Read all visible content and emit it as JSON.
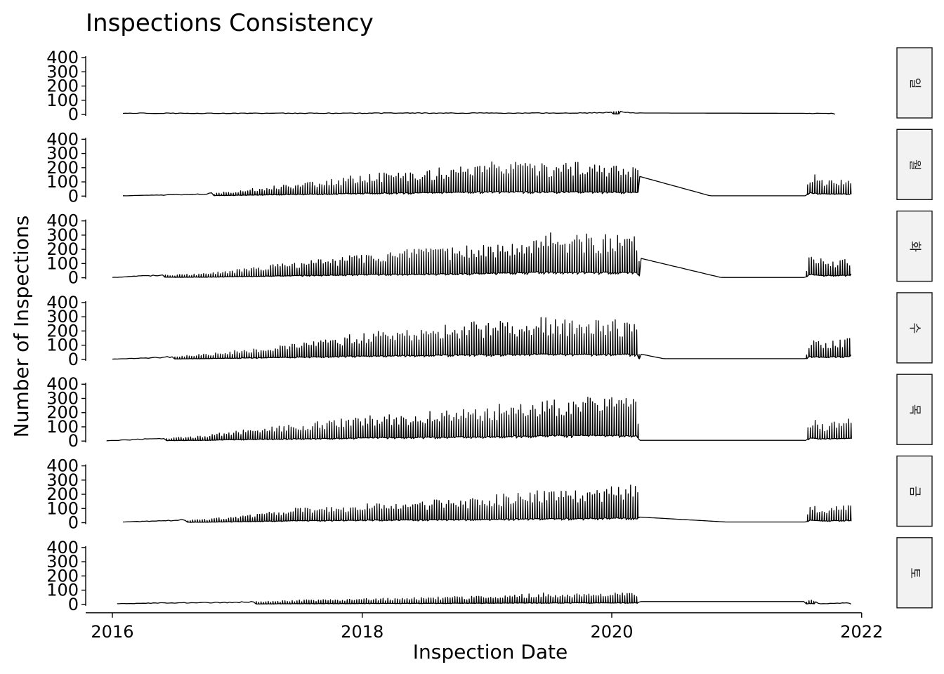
{
  "chart_data": {
    "type": "line",
    "title": "Inspections Consistency",
    "xlabel": "Inspection Date",
    "ylabel": "Number of Inspections",
    "x_ticks": [
      "2016",
      "2018",
      "2020",
      "2022"
    ],
    "xlim": [
      "2015-10-15",
      "2022-01-20"
    ],
    "y_ticks": [
      0,
      100,
      200,
      300,
      400
    ],
    "ylim": [
      0,
      420
    ],
    "grid": false,
    "facet_by": "weekday",
    "series": [
      {
        "name": "일",
        "points": [
          [
            "2016-02-01",
            10
          ],
          [
            "2016-06-15",
            9
          ],
          [
            "2017-01-01",
            8
          ],
          [
            "2017-06-01",
            9
          ],
          [
            "2018-01-01",
            9
          ],
          [
            "2018-06-01",
            10
          ],
          [
            "2019-01-01",
            10
          ],
          [
            "2019-06-01",
            10
          ],
          [
            "2019-12-01",
            12
          ],
          [
            "2020-01-20",
            24
          ],
          [
            "2020-02-01",
            15
          ],
          [
            "2020-04-01",
            10
          ],
          [
            "2021-06-01",
            8
          ],
          [
            "2021-10-15",
            7
          ]
        ]
      },
      {
        "name": "월",
        "points": [
          [
            "2016-02-01",
            2
          ],
          [
            "2016-06-01",
            8
          ],
          [
            "2016-10-01",
            15
          ],
          [
            "2017-01-01",
            40
          ],
          [
            "2017-06-01",
            90
          ],
          [
            "2017-10-01",
            120
          ],
          [
            "2018-01-01",
            160
          ],
          [
            "2018-06-01",
            180
          ],
          [
            "2018-10-01",
            220
          ],
          [
            "2019-02-01",
            250
          ],
          [
            "2019-06-01",
            230
          ],
          [
            "2019-10-01",
            240
          ],
          [
            "2020-03-15",
            220
          ],
          [
            "2020-03-20",
            140
          ],
          [
            "2020-10-15",
            2
          ],
          [
            "2021-07-20",
            2
          ],
          [
            "2021-08-01",
            170
          ],
          [
            "2021-09-15",
            120
          ],
          [
            "2021-12-01",
            120
          ]
        ]
      },
      {
        "name": "화",
        "points": [
          [
            "2016-01-01",
            2
          ],
          [
            "2016-06-01",
            20
          ],
          [
            "2016-10-01",
            30
          ],
          [
            "2017-01-01",
            60
          ],
          [
            "2017-06-01",
            110
          ],
          [
            "2017-10-01",
            140
          ],
          [
            "2018-01-01",
            180
          ],
          [
            "2018-06-01",
            200
          ],
          [
            "2018-10-01",
            220
          ],
          [
            "2019-02-01",
            250
          ],
          [
            "2019-06-01",
            320
          ],
          [
            "2019-10-01",
            310
          ],
          [
            "2020-03-15",
            300
          ],
          [
            "2020-03-20",
            140
          ],
          [
            "2020-11-15",
            2
          ],
          [
            "2021-07-20",
            2
          ],
          [
            "2021-08-01",
            180
          ],
          [
            "2021-09-15",
            120
          ],
          [
            "2021-12-01",
            140
          ]
        ]
      },
      {
        "name": "수",
        "points": [
          [
            "2016-01-01",
            2
          ],
          [
            "2016-06-01",
            15
          ],
          [
            "2016-10-01",
            40
          ],
          [
            "2017-01-01",
            70
          ],
          [
            "2017-06-01",
            110
          ],
          [
            "2017-10-01",
            150
          ],
          [
            "2018-01-01",
            190
          ],
          [
            "2018-06-01",
            220
          ],
          [
            "2018-10-01",
            260
          ],
          [
            "2019-02-01",
            270
          ],
          [
            "2019-06-01",
            300
          ],
          [
            "2019-10-01",
            280
          ],
          [
            "2020-03-15",
            280
          ],
          [
            "2020-03-20",
            40
          ],
          [
            "2020-06-01",
            5
          ],
          [
            "2021-07-20",
            5
          ],
          [
            "2021-08-01",
            160
          ],
          [
            "2021-09-15",
            120
          ],
          [
            "2021-12-01",
            160
          ]
        ]
      },
      {
        "name": "목",
        "points": [
          [
            "2015-12-15",
            2
          ],
          [
            "2016-06-01",
            20
          ],
          [
            "2016-10-01",
            40
          ],
          [
            "2017-01-01",
            80
          ],
          [
            "2017-06-01",
            120
          ],
          [
            "2017-10-01",
            150
          ],
          [
            "2018-01-01",
            180
          ],
          [
            "2018-06-01",
            200
          ],
          [
            "2018-10-01",
            230
          ],
          [
            "2019-02-01",
            260
          ],
          [
            "2019-06-01",
            310
          ],
          [
            "2019-10-01",
            320
          ],
          [
            "2020-03-15",
            300
          ],
          [
            "2020-03-20",
            5
          ],
          [
            "2021-07-20",
            5
          ],
          [
            "2021-08-01",
            160
          ],
          [
            "2021-09-15",
            120
          ],
          [
            "2021-12-01",
            160
          ]
        ]
      },
      {
        "name": "금",
        "points": [
          [
            "2016-02-01",
            5
          ],
          [
            "2016-06-01",
            15
          ],
          [
            "2016-10-01",
            25
          ],
          [
            "2017-01-01",
            50
          ],
          [
            "2017-06-01",
            100
          ],
          [
            "2017-10-01",
            120
          ],
          [
            "2018-01-01",
            140
          ],
          [
            "2018-06-01",
            150
          ],
          [
            "2018-10-01",
            170
          ],
          [
            "2019-02-01",
            200
          ],
          [
            "2019-06-01",
            230
          ],
          [
            "2019-10-01",
            240
          ],
          [
            "2020-03-15",
            270
          ],
          [
            "2020-03-20",
            40
          ],
          [
            "2020-12-01",
            5
          ],
          [
            "2021-07-20",
            5
          ],
          [
            "2021-08-01",
            130
          ],
          [
            "2021-09-15",
            100
          ],
          [
            "2021-12-01",
            130
          ]
        ]
      },
      {
        "name": "토",
        "points": [
          [
            "2016-01-15",
            5
          ],
          [
            "2016-06-01",
            10
          ],
          [
            "2017-01-01",
            15
          ],
          [
            "2017-06-01",
            30
          ],
          [
            "2018-01-01",
            40
          ],
          [
            "2018-06-01",
            50
          ],
          [
            "2019-01-01",
            60
          ],
          [
            "2019-06-01",
            80
          ],
          [
            "2019-10-01",
            80
          ],
          [
            "2020-03-15",
            80
          ],
          [
            "2020-03-20",
            20
          ],
          [
            "2021-07-20",
            20
          ],
          [
            "2021-08-01",
            40
          ],
          [
            "2021-09-01",
            5
          ],
          [
            "2021-12-01",
            10
          ]
        ]
      }
    ]
  }
}
